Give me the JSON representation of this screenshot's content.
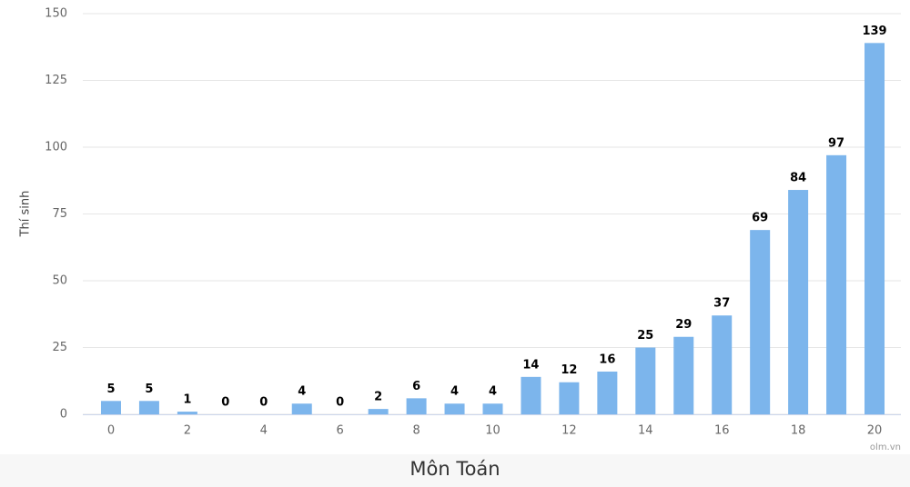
{
  "chart_data": {
    "type": "bar",
    "title": "Môn Toán",
    "y_label": "Thí sinh",
    "credit": "olm.vn",
    "categories": [
      "0",
      null,
      "2",
      null,
      "4",
      null,
      "6",
      null,
      "8",
      null,
      "10",
      null,
      "12",
      null,
      "14",
      null,
      "16",
      null,
      "18",
      null,
      "20"
    ],
    "values": [
      5,
      5,
      1,
      0,
      0,
      4,
      0,
      2,
      6,
      4,
      4,
      14,
      12,
      16,
      25,
      29,
      37,
      69,
      84,
      97,
      139
    ],
    "color": "#7cb5ec",
    "ylim": [
      0,
      150
    ],
    "yticks": [
      0,
      25,
      50,
      75,
      100,
      125,
      150
    ],
    "grid": true
  }
}
